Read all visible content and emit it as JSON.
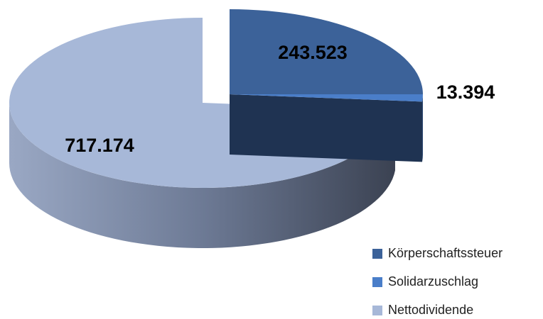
{
  "chart_data": {
    "type": "pie",
    "categories": [
      "Körperschaftssteuer",
      "Solidarzuschlag",
      "Nettodividende"
    ],
    "values": [
      243523,
      13394,
      717174
    ],
    "value_labels": [
      "243.523",
      "13.394",
      "717.174"
    ],
    "colors": [
      "#3c6299",
      "#4a7ec9",
      "#a7b8d8"
    ],
    "legend": "bottom-right"
  }
}
